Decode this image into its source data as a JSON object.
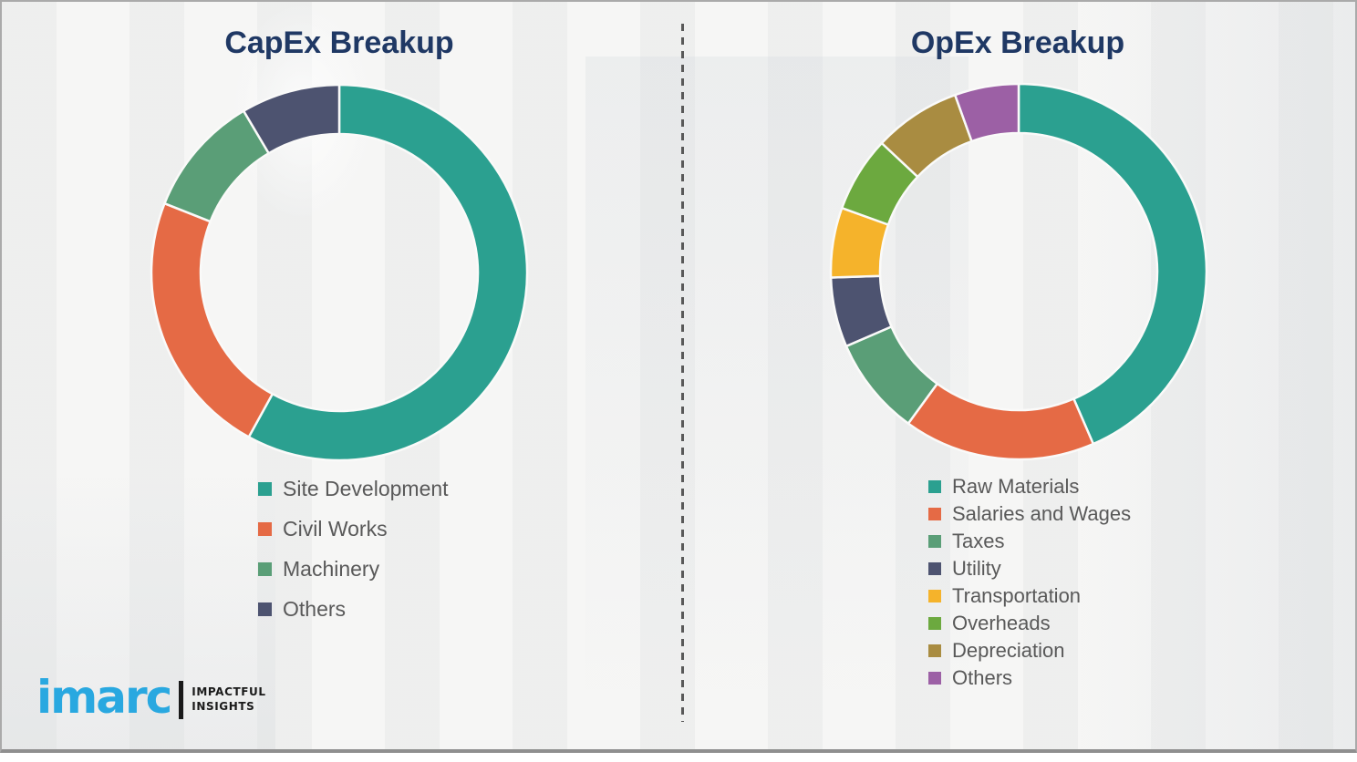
{
  "slide": {
    "left_panel_title": "CapEx Breakup",
    "right_panel_title": "OpEx Breakup"
  },
  "logo": {
    "name": "imarc",
    "tagline_line1": "IMPACTFUL",
    "tagline_line2": "INSIGHTS"
  },
  "colors": {
    "title_navy": "#1f3864",
    "legend_text": "#595959",
    "divider_gray": "#595959",
    "background": "#f3f3f2",
    "logo_blue": "#29a8e0",
    "segment_gap": "#fafaf9"
  },
  "chart_data": [
    {
      "type": "pie",
      "subtype": "donut",
      "title": "CapEx Breakup",
      "donut_hole_ratio": 0.74,
      "start_angle_deg": 0,
      "direction": "clockwise",
      "legend_position": "bottom-left",
      "units": "percent (estimated from arc angles; no data labels shown)",
      "segments": [
        {
          "label": "Site Development",
          "value": 58.0,
          "color": "#2ba090"
        },
        {
          "label": "Civil Works",
          "value": 23.0,
          "color": "#e56a45"
        },
        {
          "label": "Machinery",
          "value": 10.5,
          "color": "#5a9e77"
        },
        {
          "label": "Others",
          "value": 8.5,
          "color": "#4d5370"
        }
      ]
    },
    {
      "type": "pie",
      "subtype": "donut",
      "title": "OpEx Breakup",
      "donut_hole_ratio": 0.74,
      "start_angle_deg": 0,
      "direction": "clockwise",
      "legend_position": "bottom-left",
      "units": "percent (estimated from arc angles; no data labels shown)",
      "segments": [
        {
          "label": "Raw Materials",
          "value": 43.5,
          "color": "#2ba090"
        },
        {
          "label": "Salaries and Wages",
          "value": 16.5,
          "color": "#e56a45"
        },
        {
          "label": "Taxes",
          "value": 8.5,
          "color": "#5a9e77"
        },
        {
          "label": "Utility",
          "value": 6.0,
          "color": "#4d5370"
        },
        {
          "label": "Transportation",
          "value": 6.0,
          "color": "#f5b32b"
        },
        {
          "label": "Overheads",
          "value": 6.5,
          "color": "#6ca93f"
        },
        {
          "label": "Depreciation",
          "value": 7.5,
          "color": "#a98c41"
        },
        {
          "label": "Others",
          "value": 5.5,
          "color": "#9c60a5"
        }
      ]
    }
  ]
}
